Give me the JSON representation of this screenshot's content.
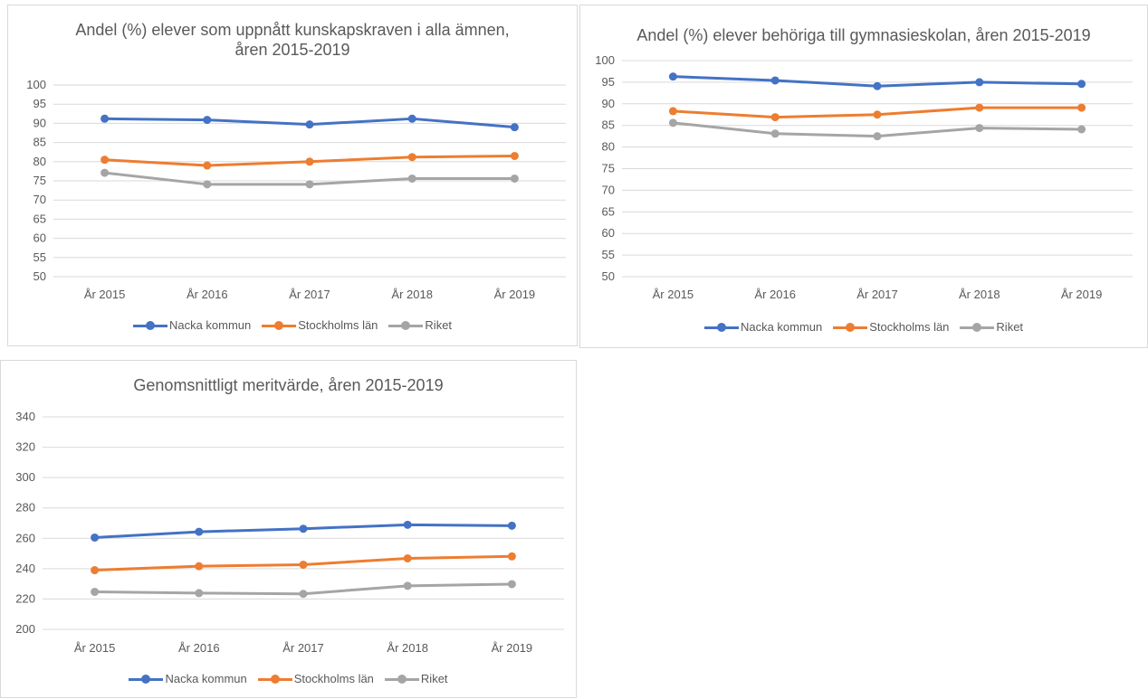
{
  "colors": {
    "nacka": "#4472C4",
    "stockholm": "#ED7D31",
    "riket": "#A5A5A5",
    "grid": "#D9D9D9"
  },
  "chart_data": [
    {
      "type": "line",
      "title_lines": [
        "Andel (%) elever som uppnått kunskapskraven i alla ämnen,",
        "åren 2015-2019"
      ],
      "categories": [
        "År 2015",
        "År 2016",
        "År 2017",
        "År 2018",
        "År 2019"
      ],
      "ylim": [
        50,
        100
      ],
      "yticks": [
        50,
        55,
        60,
        65,
        70,
        75,
        80,
        85,
        90,
        95,
        100
      ],
      "grid": true,
      "legend_position": "bottom",
      "series": [
        {
          "name": "Nacka kommun",
          "color": "#4472C4",
          "values": [
            91.2,
            90.9,
            89.7,
            91.2,
            89.0
          ]
        },
        {
          "name": "Stockholms län",
          "color": "#ED7D31",
          "values": [
            80.5,
            79.0,
            80.0,
            81.2,
            81.5
          ]
        },
        {
          "name": "Riket",
          "color": "#A5A5A5",
          "values": [
            77.1,
            74.1,
            74.1,
            75.6,
            75.6
          ]
        }
      ]
    },
    {
      "type": "line",
      "title_lines": [
        "Andel (%) elever behöriga till gymnasieskolan, åren 2015-2019"
      ],
      "categories": [
        "År 2015",
        "År 2016",
        "År 2017",
        "År 2018",
        "År 2019"
      ],
      "ylim": [
        50,
        100
      ],
      "yticks": [
        50,
        55,
        60,
        65,
        70,
        75,
        80,
        85,
        90,
        95,
        100
      ],
      "grid": true,
      "legend_position": "bottom",
      "series": [
        {
          "name": "Nacka kommun",
          "color": "#4472C4",
          "values": [
            96.3,
            95.4,
            94.1,
            95.0,
            94.6
          ]
        },
        {
          "name": "Stockholms län",
          "color": "#ED7D31",
          "values": [
            88.3,
            86.9,
            87.5,
            89.1,
            89.1
          ]
        },
        {
          "name": "Riket",
          "color": "#A5A5A5",
          "values": [
            85.6,
            83.1,
            82.5,
            84.4,
            84.1
          ]
        }
      ]
    },
    {
      "type": "line",
      "title_lines": [
        "Genomsnittligt meritvärde, åren 2015-2019"
      ],
      "categories": [
        "År 2015",
        "År 2016",
        "År 2017",
        "År 2018",
        "År 2019"
      ],
      "ylim": [
        200,
        340
      ],
      "yticks": [
        200,
        220,
        240,
        260,
        280,
        300,
        320,
        340
      ],
      "grid": true,
      "legend_position": "bottom",
      "series": [
        {
          "name": "Nacka kommun",
          "color": "#4472C4",
          "values": [
            260.5,
            264.3,
            266.3,
            268.9,
            268.3
          ]
        },
        {
          "name": "Stockholms län",
          "color": "#ED7D31",
          "values": [
            239.0,
            241.6,
            242.6,
            246.8,
            248.1
          ]
        },
        {
          "name": "Riket",
          "color": "#A5A5A5",
          "values": [
            224.7,
            223.9,
            223.4,
            228.7,
            229.8
          ]
        }
      ]
    }
  ]
}
